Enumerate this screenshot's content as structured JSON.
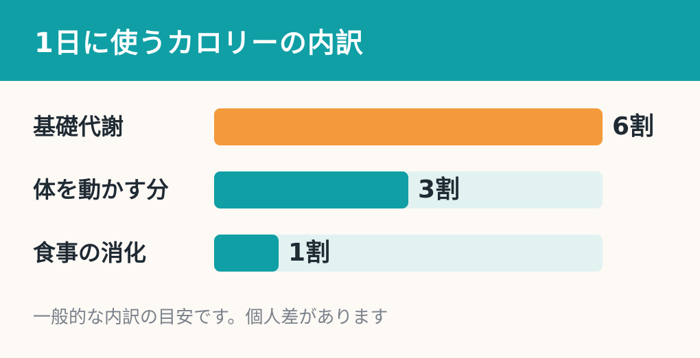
{
  "header": {
    "title": "1日に使うカロリーの内訳"
  },
  "chart_data": {
    "type": "bar",
    "orientation": "horizontal",
    "title": "1日に使うカロリーの内訳",
    "categories": [
      "基礎代謝",
      "体を動かす分",
      "食事の消化"
    ],
    "values": [
      6,
      3,
      1
    ],
    "value_labels": [
      "6割",
      "3割",
      "1割"
    ],
    "xlim": [
      0,
      6
    ],
    "colors": [
      "#f39a3b",
      "#0f9fa5",
      "#0f9fa5"
    ],
    "track_color": "#e1f2f1"
  },
  "footnote": "一般的な内訳の目安です。個人差があります",
  "colors": {
    "header": "#0f9fa5",
    "background": "#fdf9f5",
    "text": "#1f2a33"
  }
}
